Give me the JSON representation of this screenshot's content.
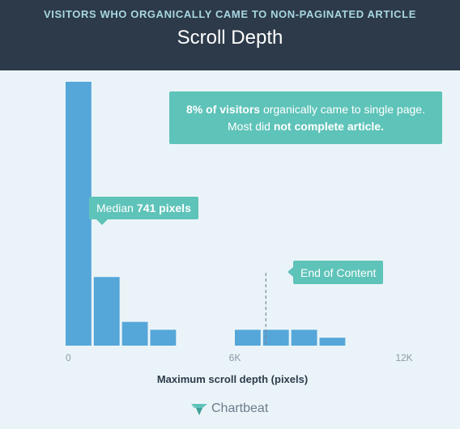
{
  "header": {
    "supertitle": "VISITORS WHO ORGANICALLY CAME TO NON-PAGINATED ARTICLE",
    "title": "Scroll Depth"
  },
  "annotations": {
    "main_1_bold": "8% of visitors",
    "main_1_rest": " organically came to single page.",
    "main_2_pre": "Most did ",
    "main_2_bold": "not complete article.",
    "median_pre": "Median ",
    "median_bold": "741 pixels",
    "end_of_content": "End of Content"
  },
  "logo": {
    "text": "Chartbeat",
    "icon": "chartbeat-logo-icon"
  },
  "colors": {
    "bar": "#55a6d9",
    "callout": "#5ec3b9",
    "header_bg": "#2d3a4a",
    "background": "#eaf4f8"
  },
  "chart_data": {
    "type": "bar",
    "title": "Scroll Depth",
    "xlabel": "Maximum scroll depth (pixels)",
    "ylabel": "",
    "x_ticks": [
      "0",
      "6K",
      "12K"
    ],
    "x_tick_values": [
      0,
      6000,
      12000
    ],
    "xlim": [
      0,
      12000
    ],
    "bin_width": 1000,
    "bins_start": [
      0,
      1000,
      2000,
      3000,
      4000,
      5000,
      6000,
      7000,
      8000,
      9000
    ],
    "values": [
      100,
      26,
      9,
      6,
      0,
      0,
      6,
      6,
      6,
      3
    ],
    "ylim": [
      0,
      100
    ],
    "median": 741,
    "end_of_content": 7100,
    "grid": false
  }
}
